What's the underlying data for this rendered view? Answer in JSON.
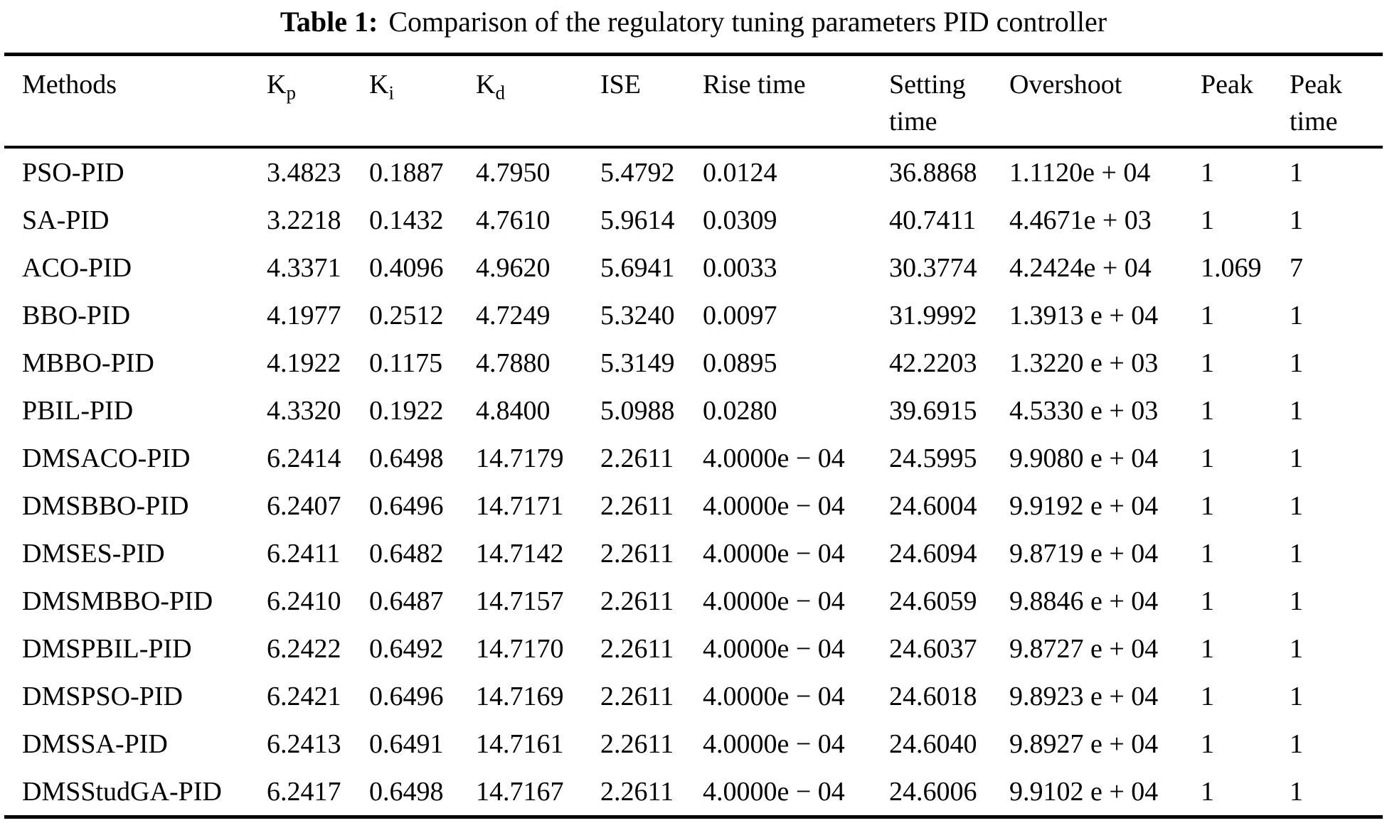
{
  "page": {
    "background_color": "#ffffff",
    "text_color": "#000000"
  },
  "title": {
    "label": "Table 1:",
    "text": "Comparison of the regulatory tuning parameters PID controller"
  },
  "table": {
    "columns": [
      {
        "id": "methods",
        "header": "Methods"
      },
      {
        "id": "kp",
        "header": "K",
        "sub": "p"
      },
      {
        "id": "ki",
        "header": "K",
        "sub": "i"
      },
      {
        "id": "kd",
        "header": "K",
        "sub": "d"
      },
      {
        "id": "ise",
        "header": "ISE"
      },
      {
        "id": "rise-time",
        "header": "Rise time"
      },
      {
        "id": "setting-time",
        "header": "Setting time"
      },
      {
        "id": "overshoot",
        "header": "Overshoot"
      },
      {
        "id": "peak",
        "header": "Peak"
      },
      {
        "id": "peak-time",
        "header": "Peak time"
      }
    ],
    "rows": [
      [
        "PSO-PID",
        "3.4823",
        "0.1887",
        "4.7950",
        "5.4792",
        "0.0124",
        "36.8868",
        "1.1120e + 04",
        "1",
        "1"
      ],
      [
        "SA-PID",
        "3.2218",
        "0.1432",
        "4.7610",
        "5.9614",
        "0.0309",
        "40.7411",
        "4.4671e + 03",
        "1",
        "1"
      ],
      [
        "ACO-PID",
        "4.3371",
        "0.4096",
        "4.9620",
        "5.6941",
        "0.0033",
        "30.3774",
        "4.2424e + 04",
        "1.069",
        "7"
      ],
      [
        "BBO-PID",
        "4.1977",
        "0.2512",
        "4.7249",
        "5.3240",
        "0.0097",
        "31.9992",
        "1.3913 e + 04",
        "1",
        "1"
      ],
      [
        "MBBO-PID",
        "4.1922",
        "0.1175",
        "4.7880",
        "5.3149",
        "0.0895",
        "42.2203",
        "1.3220 e + 03",
        "1",
        "1"
      ],
      [
        "PBIL-PID",
        "4.3320",
        "0.1922",
        "4.8400",
        "5.0988",
        "0.0280",
        "39.6915",
        "4.5330 e + 03",
        "1",
        "1"
      ],
      [
        "DMSACO-PID",
        "6.2414",
        "0.6498",
        "14.7179",
        "2.2611",
        "4.0000e − 04",
        "24.5995",
        "9.9080 e + 04",
        "1",
        "1"
      ],
      [
        "DMSBBO-PID",
        "6.2407",
        "0.6496",
        "14.7171",
        "2.2611",
        "4.0000e − 04",
        "24.6004",
        "9.9192 e + 04",
        "1",
        "1"
      ],
      [
        "DMSES-PID",
        "6.2411",
        "0.6482",
        "14.7142",
        "2.2611",
        "4.0000e − 04",
        "24.6094",
        "9.8719 e + 04",
        "1",
        "1"
      ],
      [
        "DMSMBBO-PID",
        "6.2410",
        "0.6487",
        "14.7157",
        "2.2611",
        "4.0000e − 04",
        "24.6059",
        "9.8846 e + 04",
        "1",
        "1"
      ],
      [
        "DMSPBIL-PID",
        "6.2422",
        "0.6492",
        "14.7170",
        "2.2611",
        "4.0000e − 04",
        "24.6037",
        "9.8727 e + 04",
        "1",
        "1"
      ],
      [
        "DMSPSO-PID",
        "6.2421",
        "0.6496",
        "14.7169",
        "2.2611",
        "4.0000e − 04",
        "24.6018",
        "9.8923 e + 04",
        "1",
        "1"
      ],
      [
        "DMSSA-PID",
        "6.2413",
        "0.6491",
        "14.7161",
        "2.2611",
        "4.0000e − 04",
        "24.6040",
        "9.8927 e + 04",
        "1",
        "1"
      ],
      [
        "DMSStudGA-PID",
        "6.2417",
        "0.6498",
        "14.7167",
        "2.2611",
        "4.0000e − 04",
        "24.6006",
        "9.9102 e + 04",
        "1",
        "1"
      ]
    ]
  },
  "chart_data": {
    "type": "table",
    "title": "Table 1: Comparison of the regulatory tuning parameters PID controller",
    "columns": [
      "Methods",
      "Kp",
      "Ki",
      "Kd",
      "ISE",
      "Rise time",
      "Setting time",
      "Overshoot",
      "Peak",
      "Peak time"
    ],
    "rows": [
      [
        "PSO-PID",
        "3.4823",
        "0.1887",
        "4.7950",
        "5.4792",
        "0.0124",
        "36.8868",
        "1.1120e + 04",
        "1",
        "1"
      ],
      [
        "SA-PID",
        "3.2218",
        "0.1432",
        "4.7610",
        "5.9614",
        "0.0309",
        "40.7411",
        "4.4671e + 03",
        "1",
        "1"
      ],
      [
        "ACO-PID",
        "4.3371",
        "0.4096",
        "4.9620",
        "5.6941",
        "0.0033",
        "30.3774",
        "4.2424e + 04",
        "1.069",
        "7"
      ],
      [
        "BBO-PID",
        "4.1977",
        "0.2512",
        "4.7249",
        "5.3240",
        "0.0097",
        "31.9992",
        "1.3913 e + 04",
        "1",
        "1"
      ],
      [
        "MBBO-PID",
        "4.1922",
        "0.1175",
        "4.7880",
        "5.3149",
        "0.0895",
        "42.2203",
        "1.3220 e + 03",
        "1",
        "1"
      ],
      [
        "PBIL-PID",
        "4.3320",
        "0.1922",
        "4.8400",
        "5.0988",
        "0.0280",
        "39.6915",
        "4.5330 e + 03",
        "1",
        "1"
      ],
      [
        "DMSACO-PID",
        "6.2414",
        "0.6498",
        "14.7179",
        "2.2611",
        "4.0000e − 04",
        "24.5995",
        "9.9080 e + 04",
        "1",
        "1"
      ],
      [
        "DMSBBO-PID",
        "6.2407",
        "0.6496",
        "14.7171",
        "2.2611",
        "4.0000e − 04",
        "24.6004",
        "9.9192 e + 04",
        "1",
        "1"
      ],
      [
        "DMSES-PID",
        "6.2411",
        "0.6482",
        "14.7142",
        "2.2611",
        "4.0000e − 04",
        "24.6094",
        "9.8719 e + 04",
        "1",
        "1"
      ],
      [
        "DMSMBBO-PID",
        "6.2410",
        "0.6487",
        "14.7157",
        "2.2611",
        "4.0000e − 04",
        "24.6059",
        "9.8846 e + 04",
        "1",
        "1"
      ],
      [
        "DMSPBIL-PID",
        "6.2422",
        "0.6492",
        "14.7170",
        "2.2611",
        "4.0000e − 04",
        "24.6037",
        "9.8727 e + 04",
        "1",
        "1"
      ],
      [
        "DMSPSO-PID",
        "6.2421",
        "0.6496",
        "14.7169",
        "2.2611",
        "4.0000e − 04",
        "24.6018",
        "9.8923 e + 04",
        "1",
        "1"
      ],
      [
        "DMSSA-PID",
        "6.2413",
        "0.6491",
        "14.7161",
        "2.2611",
        "4.0000e − 04",
        "24.6040",
        "9.8927 e + 04",
        "1",
        "1"
      ],
      [
        "DMSStudGA-PID",
        "6.2417",
        "0.6498",
        "14.7167",
        "2.2611",
        "4.0000e − 04",
        "24.6006",
        "9.9102 e + 04",
        "1",
        "1"
      ]
    ]
  }
}
